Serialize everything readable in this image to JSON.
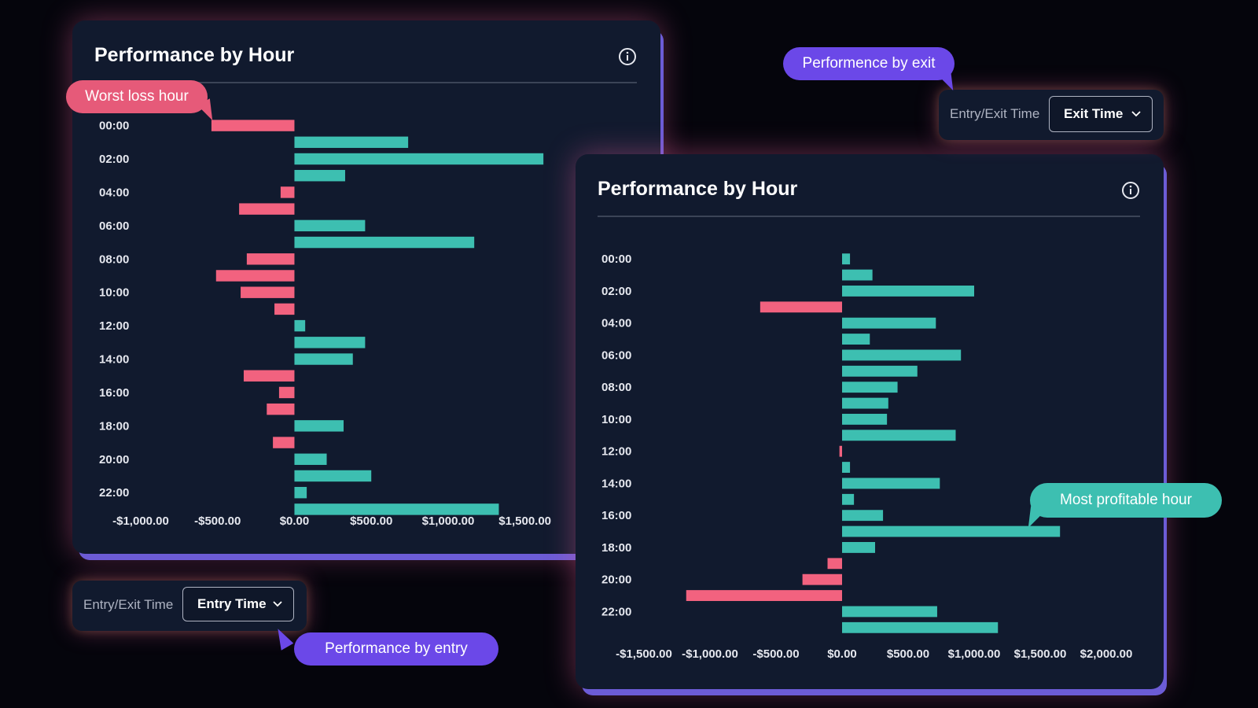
{
  "colors": {
    "positive": "#3dbfb1",
    "negative": "#f2627f",
    "callout_purple": "#6b48e8",
    "callout_red": "#e65a79",
    "callout_teal": "#3dbfb1"
  },
  "entry_chart": {
    "title": "Performance by Hour",
    "info_icon": "info-icon"
  },
  "exit_chart": {
    "title": "Performance by Hour",
    "info_icon": "info-icon"
  },
  "entry_toggle": {
    "label": "Entry/Exit Time",
    "value": "Entry Time",
    "icon": "chevron-down-icon"
  },
  "exit_toggle": {
    "label": "Entry/Exit Time",
    "value": "Exit Time",
    "icon": "chevron-down-icon"
  },
  "callouts": {
    "worst_loss": "Worst loss hour",
    "perf_by_exit": "Performence by exit",
    "perf_by_entry": "Performance by entry",
    "most_profitable": "Most profitable hour"
  },
  "chart_data": [
    {
      "type": "bar",
      "orientation": "horizontal",
      "title": "Performance by Hour",
      "hours": [
        "00:00",
        "01:00",
        "02:00",
        "03:00",
        "04:00",
        "05:00",
        "06:00",
        "07:00",
        "08:00",
        "09:00",
        "10:00",
        "11:00",
        "12:00",
        "13:00",
        "14:00",
        "15:00",
        "16:00",
        "17:00",
        "18:00",
        "19:00",
        "20:00",
        "21:00",
        "22:00",
        "23:00"
      ],
      "y_tick_labels": [
        "00:00",
        "02:00",
        "04:00",
        "06:00",
        "08:00",
        "10:00",
        "12:00",
        "14:00",
        "16:00",
        "18:00",
        "20:00",
        "22:00"
      ],
      "values": [
        -540,
        740,
        1620,
        330,
        -90,
        -360,
        460,
        1170,
        -310,
        -510,
        -350,
        -130,
        70,
        460,
        380,
        -330,
        -100,
        -180,
        320,
        -140,
        210,
        500,
        80,
        1330
      ],
      "x_ticks": [
        -1000,
        -500,
        0,
        500,
        1000,
        1500
      ],
      "x_tick_labels": [
        "-$1,000.00",
        "-$500.00",
        "$0.00",
        "$500.00",
        "$1,000.00",
        "$1,500.00"
      ],
      "xlim": [
        -1000,
        1650
      ],
      "grid": false
    },
    {
      "type": "bar",
      "orientation": "horizontal",
      "title": "Performance by Hour",
      "hours": [
        "00:00",
        "01:00",
        "02:00",
        "03:00",
        "04:00",
        "05:00",
        "06:00",
        "07:00",
        "08:00",
        "09:00",
        "10:00",
        "11:00",
        "12:00",
        "13:00",
        "14:00",
        "15:00",
        "16:00",
        "17:00",
        "18:00",
        "19:00",
        "20:00",
        "21:00",
        "22:00",
        "23:00"
      ],
      "y_tick_labels": [
        "00:00",
        "02:00",
        "04:00",
        "06:00",
        "08:00",
        "10:00",
        "12:00",
        "14:00",
        "16:00",
        "18:00",
        "20:00",
        "22:00"
      ],
      "values": [
        60,
        230,
        1000,
        -620,
        710,
        210,
        900,
        570,
        420,
        350,
        340,
        860,
        -20,
        60,
        740,
        90,
        310,
        1650,
        250,
        -110,
        -300,
        -1180,
        720,
        1180
      ],
      "x_ticks": [
        -1500,
        -1000,
        -500,
        0,
        500,
        1000,
        1500,
        2000
      ],
      "x_tick_labels": [
        "-$1,500.00",
        "-$1,000.00",
        "-$500.00",
        "$0.00",
        "$500.00",
        "$1,000.00",
        "$1,500.00",
        "$2,000.00"
      ],
      "xlim": [
        -1500,
        2000
      ],
      "grid": false
    }
  ]
}
